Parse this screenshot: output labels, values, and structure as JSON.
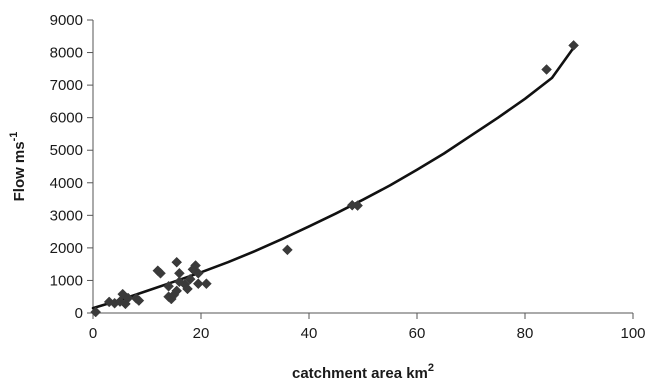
{
  "chart_data": {
    "type": "scatter",
    "xlabel": {
      "text": "catchment area km",
      "superscript": "2"
    },
    "ylabel": {
      "text": "Flow ms",
      "superscript": "-1"
    },
    "xlim": [
      0,
      100
    ],
    "ylim": [
      0,
      9000
    ],
    "x_ticks": [
      0,
      20,
      40,
      60,
      80,
      100
    ],
    "y_ticks": [
      0,
      1000,
      2000,
      3000,
      4000,
      5000,
      6000,
      7000,
      8000,
      9000
    ],
    "grid": false,
    "legend": "none",
    "marker_color": "#3a3a3a",
    "line_color": "#111111",
    "series": [
      {
        "kind": "points",
        "marker": "diamond",
        "points": [
          [
            0.5,
            30
          ],
          [
            3,
            340
          ],
          [
            4,
            300
          ],
          [
            5,
            350
          ],
          [
            5.5,
            580
          ],
          [
            6,
            280
          ],
          [
            6.5,
            460
          ],
          [
            8,
            450
          ],
          [
            8.5,
            380
          ],
          [
            12,
            1300
          ],
          [
            12.5,
            1220
          ],
          [
            14,
            820
          ],
          [
            14,
            500
          ],
          [
            14.5,
            430
          ],
          [
            15,
            560
          ],
          [
            15.5,
            680
          ],
          [
            15.5,
            1560
          ],
          [
            16,
            1220
          ],
          [
            16,
            960
          ],
          [
            17,
            880
          ],
          [
            17.5,
            740
          ],
          [
            18,
            1040
          ],
          [
            18.5,
            1340
          ],
          [
            19,
            1460
          ],
          [
            19.5,
            900
          ],
          [
            19.5,
            1220
          ],
          [
            21,
            900
          ],
          [
            36,
            1940
          ],
          [
            48,
            3310
          ],
          [
            49,
            3300
          ],
          [
            84,
            7480
          ],
          [
            89,
            8220
          ]
        ]
      },
      {
        "kind": "trendline",
        "points": [
          [
            0,
            150
          ],
          [
            5,
            400
          ],
          [
            10,
            680
          ],
          [
            15,
            960
          ],
          [
            20,
            1250
          ],
          [
            25,
            1560
          ],
          [
            30,
            1900
          ],
          [
            35,
            2270
          ],
          [
            40,
            2660
          ],
          [
            45,
            3060
          ],
          [
            50,
            3480
          ],
          [
            55,
            3920
          ],
          [
            60,
            4400
          ],
          [
            65,
            4900
          ],
          [
            70,
            5450
          ],
          [
            75,
            6000
          ],
          [
            80,
            6580
          ],
          [
            85,
            7220
          ],
          [
            89,
            8150
          ]
        ]
      }
    ]
  }
}
